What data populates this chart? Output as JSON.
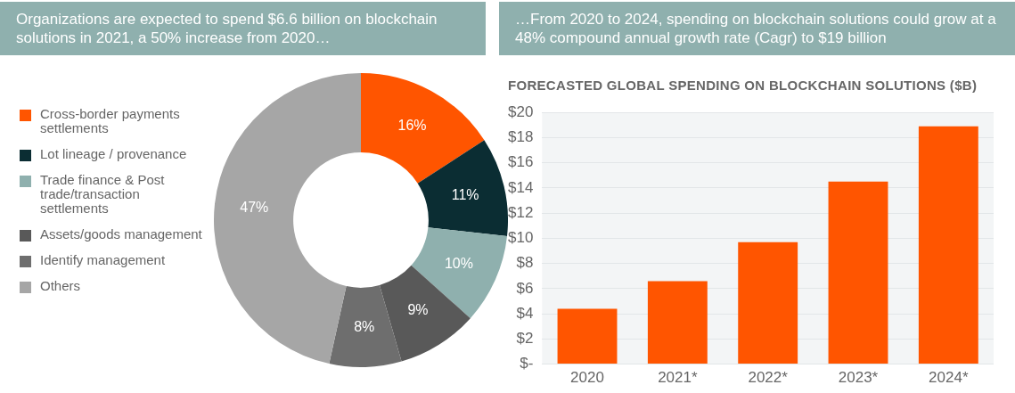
{
  "chart_data": [
    {
      "type": "donut",
      "title": "Organizations are expected to spend $6.6 billion on blockchain solutions in 2021, a 50% increase from 2020…",
      "categories": [
        "Cross-border payments settlements",
        "Lot lineage / provenance",
        "Trade finance & Post trade/transaction settlements",
        "Assets/goods management",
        "Identify management",
        "Others"
      ],
      "values": [
        16,
        11,
        10,
        9,
        8,
        47
      ],
      "value_labels": [
        "16%",
        "11%",
        "10%",
        "9%",
        "8%",
        "47%"
      ],
      "colors": [
        "#ff5500",
        "#0b2d33",
        "#8fb0ae",
        "#595959",
        "#6e6e6e",
        "#a6a6a6"
      ],
      "legend": "left"
    },
    {
      "type": "bar",
      "title": "…From 2020 to 2024, spending on blockchain solutions could grow at a 48% compound annual growth rate (Cagr) to $19 billion",
      "subtitle": "FORECASTED GLOBAL SPENDING ON BLOCKCHAIN SOLUTIONS ($B)",
      "categories": [
        "2020",
        "2021*",
        "2022*",
        "2023*",
        "2024*"
      ],
      "values": [
        4.4,
        6.6,
        9.7,
        14.5,
        18.9
      ],
      "color": "#ff5500",
      "ylim": [
        0,
        20
      ],
      "yticks": [
        {
          "value": 0,
          "label": "$-"
        },
        {
          "value": 2,
          "label": "$2"
        },
        {
          "value": 4,
          "label": "$4"
        },
        {
          "value": 6,
          "label": "$6"
        },
        {
          "value": 8,
          "label": "$8"
        },
        {
          "value": 10,
          "label": "$10"
        },
        {
          "value": 12,
          "label": "$12"
        },
        {
          "value": 14,
          "label": "$14"
        },
        {
          "value": 16,
          "label": "$16"
        },
        {
          "value": 18,
          "label": "$18"
        },
        {
          "value": 20,
          "label": "$20"
        }
      ],
      "grid": "y"
    }
  ]
}
